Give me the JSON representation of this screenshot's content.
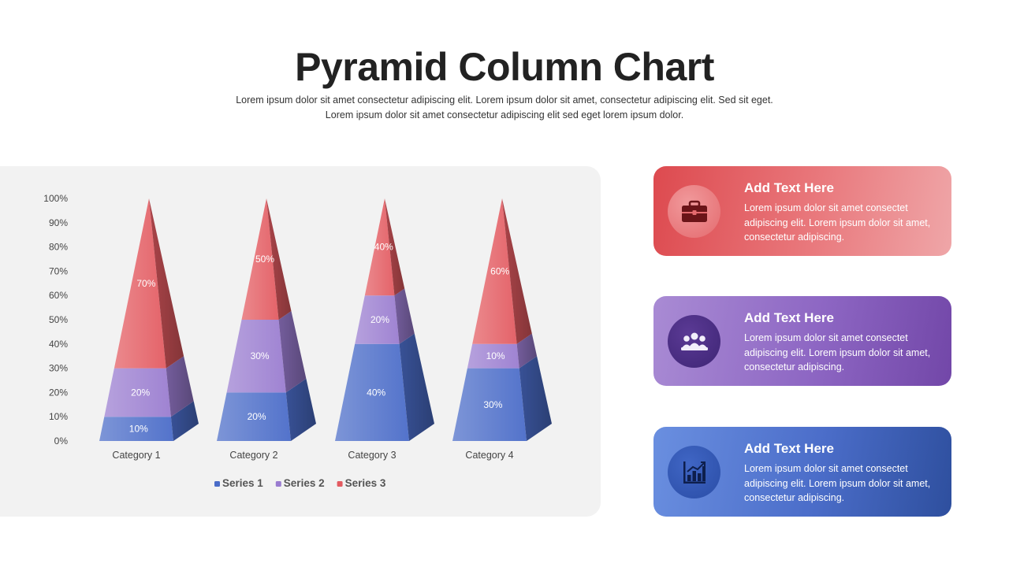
{
  "header": {
    "title": "Pyramid Column Chart",
    "subtitle_line1": "Lorem ipsum dolor sit amet consectetur adipiscing elit. Lorem ipsum dolor sit amet, consectetur adipiscing elit. Sed sit eget.",
    "subtitle_line2": "Lorem ipsum dolor sit amet consectetur adipiscing elit sed eget lorem ipsum dolor."
  },
  "chart_data": {
    "type": "bar",
    "subtype": "stacked-pyramid",
    "categories": [
      "Category 1",
      "Category 2",
      "Category 3",
      "Category 4"
    ],
    "series": [
      {
        "name": "Series 1",
        "values": [
          10,
          20,
          40,
          30
        ],
        "labels": [
          "10%",
          "20%",
          "40%",
          "30%"
        ],
        "color": "#4a6cc8"
      },
      {
        "name": "Series 2",
        "values": [
          20,
          30,
          20,
          10
        ],
        "labels": [
          "20%",
          "30%",
          "20%",
          "10%"
        ],
        "color": "#9a7cd0"
      },
      {
        "name": "Series 3",
        "values": [
          70,
          50,
          40,
          60
        ],
        "labels": [
          "70%",
          "50%",
          "40%",
          "60%"
        ],
        "color": "#e35b61"
      }
    ],
    "y_ticks": [
      "0%",
      "10%",
      "20%",
      "30%",
      "40%",
      "50%",
      "60%",
      "70%",
      "80%",
      "90%",
      "100%"
    ],
    "ylim": [
      0,
      100
    ],
    "legend_position": "bottom"
  },
  "cards": [
    {
      "heading": "Add Text Here",
      "text": "Lorem ipsum dolor sit amet consectet adipiscing elit. Lorem ipsum dolor sit amet, consectetur adipiscing.",
      "icon": "briefcase-icon",
      "color": "#dd4a4f"
    },
    {
      "heading": "Add Text Here",
      "text": "Lorem ipsum dolor sit amet consectet adipiscing elit. Lorem ipsum dolor sit amet, consectetur adipiscing.",
      "icon": "team-meeting-icon",
      "color": "#8d66c3"
    },
    {
      "heading": "Add Text Here",
      "text": "Lorem ipsum dolor sit amet consectet adipiscing elit. Lorem ipsum dolor sit amet, consectetur adipiscing.",
      "icon": "bar-chart-icon",
      "color": "#4b6dc9"
    }
  ]
}
